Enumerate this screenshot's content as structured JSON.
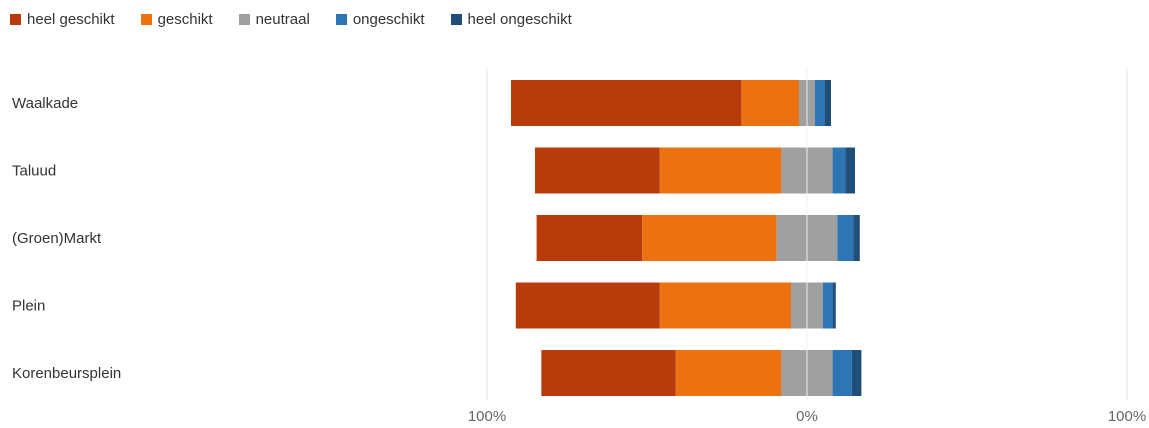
{
  "chart_data": {
    "type": "bar",
    "stacking": "diverging",
    "orientation": "horizontal",
    "categories": [
      "Waalkade",
      "Taluud",
      "(Groen)Markt",
      "Plein",
      "Korenbeursplein"
    ],
    "series": [
      {
        "name": "heel geschikt",
        "color": "#b83b0c",
        "values": [
          72,
          39,
          33,
          45,
          42
        ]
      },
      {
        "name": "geschikt",
        "color": "#ec7211",
        "values": [
          18,
          38,
          42,
          41,
          33
        ]
      },
      {
        "name": "neutraal",
        "color": "#a0a0a0",
        "values": [
          5,
          16,
          19,
          10,
          16
        ]
      },
      {
        "name": "ongeschikt",
        "color": "#2e75b6",
        "values": [
          3,
          4,
          5,
          3,
          6
        ]
      },
      {
        "name": "heel ongeschikt",
        "color": "#1f4e79",
        "values": [
          2,
          3,
          2,
          1,
          3
        ]
      }
    ],
    "xlim": [
      -100,
      100
    ],
    "x_ticks": [
      {
        "value": -100,
        "label": "100%"
      },
      {
        "value": 0,
        "label": "0%"
      },
      {
        "value": 100,
        "label": "100%"
      }
    ],
    "grid": true,
    "legend_position": "top-left"
  }
}
